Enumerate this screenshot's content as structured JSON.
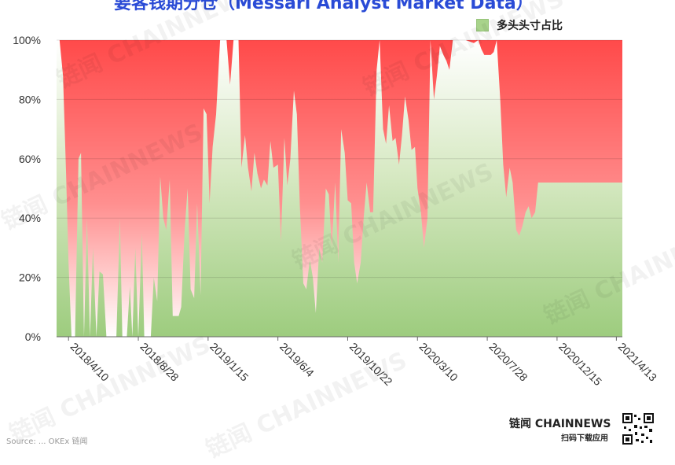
{
  "chart_data": {
    "type": "area",
    "title": "",
    "legend": {
      "label": "多头头寸占比",
      "placement": "top-right",
      "color": "#a8d38b"
    },
    "xlabel": "",
    "ylabel": "",
    "ylim": [
      0,
      100
    ],
    "y_ticks": [
      "0%",
      "20%",
      "40%",
      "60%",
      "80%",
      "100%"
    ],
    "x_ticks": [
      "2018/4/10",
      "2018/8/28",
      "2019/1/15",
      "2019/6/4",
      "2019/10/22",
      "2020/3/10",
      "2020/7/28",
      "2020/12/15",
      "2021/4/13"
    ],
    "x_range": [
      "2018/3/17",
      "2021/4/25"
    ],
    "long_color": "#a8d38b",
    "short_color": "#ff5a5a",
    "grid": true,
    "series": [
      {
        "name": "多头头寸占比",
        "points": [
          [
            "2018/3/17",
            100
          ],
          [
            "2018/3/23",
            100
          ],
          [
            "2018/3/30",
            88
          ],
          [
            "2018/4/5",
            55
          ],
          [
            "2018/4/10",
            25
          ],
          [
            "2018/4/16",
            0
          ],
          [
            "2018/4/23",
            0
          ],
          [
            "2018/4/30",
            60
          ],
          [
            "2018/5/5",
            62
          ],
          [
            "2018/5/11",
            0
          ],
          [
            "2018/5/17",
            40
          ],
          [
            "2018/5/23",
            0
          ],
          [
            "2018/5/29",
            30
          ],
          [
            "2018/6/5",
            0
          ],
          [
            "2018/6/11",
            22
          ],
          [
            "2018/6/18",
            21
          ],
          [
            "2018/6/25",
            0
          ],
          [
            "2018/7/8",
            0
          ],
          [
            "2018/7/15",
            0
          ],
          [
            "2018/7/22",
            40
          ],
          [
            "2018/7/27",
            0
          ],
          [
            "2018/8/5",
            0
          ],
          [
            "2018/8/11",
            17
          ],
          [
            "2018/8/16",
            0
          ],
          [
            "2018/8/22",
            30
          ],
          [
            "2018/8/28",
            0
          ],
          [
            "2018/9/4",
            35
          ],
          [
            "2018/9/9",
            0
          ],
          [
            "2018/9/22",
            0
          ],
          [
            "2018/9/28",
            20
          ],
          [
            "2018/10/5",
            12
          ],
          [
            "2018/10/11",
            54
          ],
          [
            "2018/10/17",
            40
          ],
          [
            "2018/10/23",
            36
          ],
          [
            "2018/10/30",
            53
          ],
          [
            "2018/11/5",
            7
          ],
          [
            "2018/11/17",
            7
          ],
          [
            "2018/11/22",
            10
          ],
          [
            "2018/11/29",
            36
          ],
          [
            "2018/12/5",
            50
          ],
          [
            "2018/12/11",
            16
          ],
          [
            "2018/12/18",
            13
          ],
          [
            "2018/12/24",
            45
          ],
          [
            "2018/12/31",
            14
          ],
          [
            "2019/1/6",
            77
          ],
          [
            "2019/1/12",
            75
          ],
          [
            "2019/1/18",
            45
          ],
          [
            "2019/1/24",
            64
          ],
          [
            "2019/1/31",
            75
          ],
          [
            "2019/2/8",
            100
          ],
          [
            "2019/2/21",
            100
          ],
          [
            "2019/2/28",
            85
          ],
          [
            "2019/3/7",
            100
          ],
          [
            "2019/3/17",
            100
          ],
          [
            "2019/3/23",
            57
          ],
          [
            "2019/3/30",
            68
          ],
          [
            "2019/4/5",
            57
          ],
          [
            "2019/4/12",
            49
          ],
          [
            "2019/4/18",
            62
          ],
          [
            "2019/4/24",
            55
          ],
          [
            "2019/5/1",
            50
          ],
          [
            "2019/5/7",
            53
          ],
          [
            "2019/5/14",
            51
          ],
          [
            "2019/5/20",
            66
          ],
          [
            "2019/5/26",
            57
          ],
          [
            "2019/6/4",
            58
          ],
          [
            "2019/6/10",
            32
          ],
          [
            "2019/6/17",
            67
          ],
          [
            "2019/6/23",
            51
          ],
          [
            "2019/6/29",
            60
          ],
          [
            "2019/7/6",
            83
          ],
          [
            "2019/7/12",
            75
          ],
          [
            "2019/7/18",
            44
          ],
          [
            "2019/7/25",
            18
          ],
          [
            "2019/7/31",
            16
          ],
          [
            "2019/8/7",
            26
          ],
          [
            "2019/8/13",
            20
          ],
          [
            "2019/8/19",
            8
          ],
          [
            "2019/8/26",
            30
          ],
          [
            "2019/9/1",
            25
          ],
          [
            "2019/9/8",
            50
          ],
          [
            "2019/9/14",
            48
          ],
          [
            "2019/9/20",
            30
          ],
          [
            "2019/9/27",
            52
          ],
          [
            "2019/10/3",
            25
          ],
          [
            "2019/10/9",
            70
          ],
          [
            "2019/10/16",
            62
          ],
          [
            "2019/10/22",
            46
          ],
          [
            "2019/10/29",
            45
          ],
          [
            "2019/11/4",
            25
          ],
          [
            "2019/11/10",
            18
          ],
          [
            "2019/11/17",
            25
          ],
          [
            "2019/11/23",
            40
          ],
          [
            "2019/11/29",
            52
          ],
          [
            "2019/12/6",
            42
          ],
          [
            "2019/12/12",
            42
          ],
          [
            "2019/12/19",
            90
          ],
          [
            "2019/12/25",
            100
          ],
          [
            "2020/1/1",
            70
          ],
          [
            "2020/1/7",
            65
          ],
          [
            "2020/1/13",
            78
          ],
          [
            "2020/1/20",
            66
          ],
          [
            "2020/1/26",
            67
          ],
          [
            "2020/2/2",
            58
          ],
          [
            "2020/2/8",
            68
          ],
          [
            "2020/2/14",
            81
          ],
          [
            "2020/2/21",
            73
          ],
          [
            "2020/2/27",
            63
          ],
          [
            "2020/3/5",
            64
          ],
          [
            "2020/3/10",
            50
          ],
          [
            "2020/3/17",
            42
          ],
          [
            "2020/3/23",
            30
          ],
          [
            "2020/3/30",
            40
          ],
          [
            "2020/4/5",
            100
          ],
          [
            "2020/4/12",
            80
          ],
          [
            "2020/4/18",
            88
          ],
          [
            "2020/4/24",
            98
          ],
          [
            "2020/5/1",
            95
          ],
          [
            "2020/5/7",
            93
          ],
          [
            "2020/5/13",
            90
          ],
          [
            "2020/5/20",
            100
          ],
          [
            "2020/6/15",
            100
          ],
          [
            "2020/7/1",
            99
          ],
          [
            "2020/7/10",
            100
          ],
          [
            "2020/7/16",
            97
          ],
          [
            "2020/7/22",
            95
          ],
          [
            "2020/7/28",
            95
          ],
          [
            "2020/8/4",
            95
          ],
          [
            "2020/8/10",
            96
          ],
          [
            "2020/8/16",
            100
          ],
          [
            "2020/8/23",
            80
          ],
          [
            "2020/8/29",
            58
          ],
          [
            "2020/9/4",
            47
          ],
          [
            "2020/9/11",
            57
          ],
          [
            "2020/9/17",
            52
          ],
          [
            "2020/9/24",
            36
          ],
          [
            "2020/9/30",
            34
          ],
          [
            "2020/10/6",
            37
          ],
          [
            "2020/10/13",
            42
          ],
          [
            "2020/10/19",
            44
          ],
          [
            "2020/10/25",
            40
          ],
          [
            "2020/11/1",
            42
          ],
          [
            "2020/11/7",
            52
          ]
        ]
      }
    ]
  },
  "branding": {
    "title": "要客钱期分仓（Messari Analyst Market Data）",
    "brand": "链闻 CHAINNEWS",
    "brand_sub": "扫码下载应用",
    "source": "Source: ... OKEx 链闻",
    "watermark": "链闻 CHAINNEWS"
  }
}
